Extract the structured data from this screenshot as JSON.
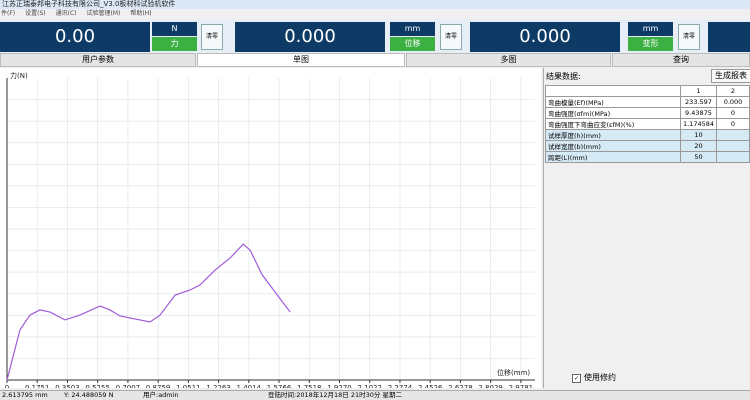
{
  "window": {
    "title": "江苏正瑞泰邦电子科技有限公司_V3.0板材科试验机软件",
    "menu": [
      "件(F)",
      "设置(S)",
      "通讯(C)",
      "试验管理(M)",
      "帮助(H)"
    ]
  },
  "displays": [
    {
      "value": "0.00",
      "unit": "N",
      "label": "力",
      "button": "清零"
    },
    {
      "value": "0.000",
      "unit": "mm",
      "label": "位移",
      "button": "清零"
    },
    {
      "value": "0.000",
      "unit": "mm",
      "label": "变形",
      "button": "清零"
    }
  ],
  "tabs": [
    "用户参数",
    "单图",
    "多图",
    "查询"
  ],
  "chart_data": {
    "type": "line",
    "ylabel": "力(N)",
    "xlabel": "位移(mm)",
    "x": [
      0,
      0.075,
      0.133,
      0.191,
      0.249,
      0.336,
      0.423,
      0.539,
      0.597,
      0.655,
      0.771,
      0.829,
      0.887,
      0.974,
      1.061,
      1.119,
      1.206,
      1.293,
      1.369,
      1.409,
      1.479,
      1.554,
      1.641
    ],
    "series": [
      {
        "color": "#a05ad8",
        "values": [
          0,
          16.6,
          21.5,
          23.2,
          22.5,
          19.9,
          21.5,
          24.5,
          23.2,
          21.2,
          19.9,
          19.2,
          21.5,
          28.1,
          29.8,
          31.5,
          36.4,
          40.4,
          45.0,
          43.0,
          34.8,
          29.1,
          22.5
        ]
      }
    ],
    "xlim": [
      0,
      3.06
    ],
    "ylim": [
      0,
      100
    ],
    "xticks": [
      0,
      0.1751,
      0.3503,
      0.5255,
      0.7007,
      0.8759,
      1.0511,
      1.2263,
      1.4014,
      1.5766,
      1.7518,
      {
        "value": 1.927,
        "label": "1.9270"
      },
      2.1022,
      2.2774,
      2.4526,
      2.6278,
      2.8029,
      2.9781
    ],
    "grid": true
  },
  "results": {
    "title": "结果数据:",
    "button": "生成报表",
    "columns": [
      "1",
      "2"
    ],
    "rows": [
      {
        "label": "弯曲模量(Ef)(MPa)",
        "values": [
          "233.597",
          "0.000"
        ]
      },
      {
        "label": "弯曲强度(σfm)(MPa)",
        "values": [
          "9.43875",
          "0"
        ]
      },
      {
        "label": "弯曲强度下弯曲应变(εfM)(%)",
        "values": [
          "1.174584",
          "0"
        ]
      },
      {
        "label": "试样厚度(h)(mm)",
        "values": [
          "10"
        ]
      },
      {
        "label": "试样宽度(b)(mm)",
        "values": [
          "20"
        ]
      },
      {
        "label": "跨距(L)(mm)",
        "values": [
          "50"
        ]
      }
    ]
  },
  "checkbox": {
    "label": "使用修约",
    "checked": true
  },
  "status": [
    "2.613795 mm",
    "Y: 24.488059 N",
    "用户:admin",
    "登陆时间:2018年12月18日  21时30分  星期二"
  ]
}
